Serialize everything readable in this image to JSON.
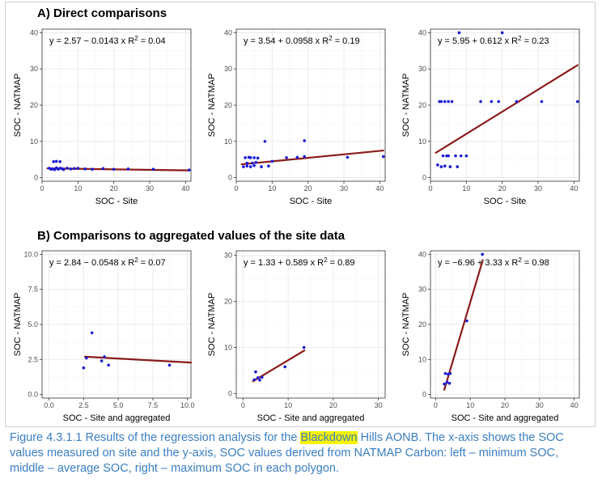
{
  "section_a_title": "A)  Direct comparisons",
  "section_b_title": "B)  Comparisons to aggregated values of the site data",
  "caption": {
    "line1_before": "Figure 4.3.1.1 Results of the regression analysis for the ",
    "highlight": "Blackdown",
    "line1_after": " Hills AONB. The x-axis shows the SOC values measured on site and the y-axis, SOC values derived from NATMAP Carbon: left – minimum SOC, middle – average SOC, right – maximum SOC in each polygon."
  },
  "colors": {
    "point": "#1b1bd6",
    "line": "#8b1a1a",
    "grid": "#ebebeb",
    "frame": "#333333"
  },
  "chart_data": [
    {
      "id": "a1",
      "type": "scatter",
      "equation": "y = 2.57 − 0.0143 x",
      "r2_label": "R",
      "r2_sup": "2",
      "r2_value": " = 0.04",
      "xlabel": "SOC - Site",
      "ylabel": "SOC - NATMAP",
      "xlim": [
        0,
        41.5
      ],
      "ylim": [
        -1,
        41
      ],
      "xticks": [
        0,
        10,
        20,
        30,
        40
      ],
      "yticks": [
        0,
        10,
        20,
        30,
        40
      ],
      "xtick_labels": [
        "0",
        "10",
        "20",
        "30",
        "40"
      ],
      "ytick_labels": [
        "0",
        "10",
        "20",
        "30",
        "40"
      ],
      "points": [
        [
          2,
          2.6
        ],
        [
          2.5,
          2.3
        ],
        [
          3,
          2.4
        ],
        [
          3.2,
          4.4
        ],
        [
          3.5,
          2.2
        ],
        [
          4,
          2.7
        ],
        [
          4,
          4.5
        ],
        [
          4.5,
          2.3
        ],
        [
          5,
          2.6
        ],
        [
          5,
          4.4
        ],
        [
          5.5,
          2.5
        ],
        [
          6,
          2.2
        ],
        [
          7,
          2.6
        ],
        [
          8,
          2.4
        ],
        [
          9,
          2.5
        ],
        [
          10,
          2.6
        ],
        [
          12,
          2.4
        ],
        [
          14,
          2.3
        ],
        [
          17,
          2.5
        ],
        [
          20,
          2.3
        ],
        [
          24,
          2.4
        ],
        [
          31,
          2.3
        ],
        [
          41,
          2.1
        ]
      ],
      "line": [
        [
          1.5,
          2.55
        ],
        [
          41,
          1.98
        ]
      ]
    },
    {
      "id": "a2",
      "type": "scatter",
      "equation": "y = 3.54 + 0.0958 x",
      "r2_label": "R",
      "r2_sup": "2",
      "r2_value": " = 0.19",
      "xlabel": "SOC - Site",
      "ylabel": "SOC - NATMAP",
      "xlim": [
        0,
        41.5
      ],
      "ylim": [
        -1,
        41
      ],
      "xticks": [
        0,
        10,
        20,
        30,
        40
      ],
      "yticks": [
        0,
        10,
        20,
        30,
        40
      ],
      "xtick_labels": [
        "0",
        "10",
        "20",
        "30",
        "40"
      ],
      "ytick_labels": [
        "0",
        "10",
        "20",
        "30",
        "40"
      ],
      "points": [
        [
          2,
          3
        ],
        [
          2.5,
          5.5
        ],
        [
          3,
          4
        ],
        [
          3,
          3.2
        ],
        [
          3.5,
          5.6
        ],
        [
          4,
          3
        ],
        [
          4,
          5.5
        ],
        [
          4.5,
          4
        ],
        [
          5,
          5.5
        ],
        [
          5,
          3.3
        ],
        [
          5.5,
          4.2
        ],
        [
          6,
          5.4
        ],
        [
          7,
          3
        ],
        [
          8,
          10
        ],
        [
          9,
          3.2
        ],
        [
          10,
          4.5
        ],
        [
          14,
          5.5
        ],
        [
          17,
          5.6
        ],
        [
          19,
          10.2
        ],
        [
          19,
          5.8
        ],
        [
          31,
          5.6
        ],
        [
          41,
          5.8
        ]
      ],
      "line": [
        [
          1.5,
          3.68
        ],
        [
          41,
          7.47
        ]
      ]
    },
    {
      "id": "a3",
      "type": "scatter",
      "equation": "y = 5.95 + 0.612 x",
      "r2_label": "R",
      "r2_sup": "2",
      "r2_value": " = 0.23",
      "xlabel": "SOC - Site",
      "ylabel": "SOC - NATMAP",
      "xlim": [
        0,
        41.5
      ],
      "ylim": [
        -1,
        41
      ],
      "xticks": [
        0,
        10,
        20,
        30,
        40
      ],
      "yticks": [
        0,
        10,
        20,
        30,
        40
      ],
      "xtick_labels": [
        "0",
        "10",
        "20",
        "30",
        "40"
      ],
      "ytick_labels": [
        "0",
        "10",
        "20",
        "30",
        "40"
      ],
      "points": [
        [
          2,
          3.5
        ],
        [
          2.5,
          21
        ],
        [
          3,
          3
        ],
        [
          3,
          21
        ],
        [
          3.5,
          6
        ],
        [
          4,
          3.2
        ],
        [
          4,
          21
        ],
        [
          4.5,
          6
        ],
        [
          5,
          21
        ],
        [
          5,
          6
        ],
        [
          5.5,
          3
        ],
        [
          6,
          21
        ],
        [
          7,
          6
        ],
        [
          7.5,
          3
        ],
        [
          8,
          40
        ],
        [
          8.5,
          6
        ],
        [
          10,
          6
        ],
        [
          14,
          21
        ],
        [
          17,
          21
        ],
        [
          19,
          21
        ],
        [
          20,
          40
        ],
        [
          24,
          21
        ],
        [
          31,
          21
        ],
        [
          41,
          21
        ]
      ],
      "line": [
        [
          1.5,
          6.87
        ],
        [
          41,
          31.04
        ]
      ]
    },
    {
      "id": "b1",
      "type": "scatter",
      "equation": "y = 2.84 − 0.0548 x",
      "r2_label": "R",
      "r2_sup": "2",
      "r2_value": " = 0.07",
      "xlabel": "SOC - Site and aggregated",
      "ylabel": "SOC - NATMAP",
      "xlim": [
        -0.5,
        10.25
      ],
      "ylim": [
        -0.25,
        10.25
      ],
      "xticks": [
        0,
        2.5,
        5,
        7.5,
        10
      ],
      "yticks": [
        0,
        2.5,
        5,
        7.5,
        10
      ],
      "xtick_labels": [
        "0.0",
        "2.5",
        "5.0",
        "7.5",
        "10.0"
      ],
      "ytick_labels": [
        "0.0",
        "2.5",
        "5.0",
        "7.5",
        "10.0"
      ],
      "points": [
        [
          2.5,
          1.9
        ],
        [
          2.7,
          2.6
        ],
        [
          3.1,
          4.4
        ],
        [
          3.8,
          2.4
        ],
        [
          4.0,
          2.7
        ],
        [
          4.3,
          2.1
        ],
        [
          8.7,
          2.1
        ]
      ],
      "line": [
        [
          2.6,
          2.7
        ],
        [
          10.25,
          2.28
        ]
      ]
    },
    {
      "id": "b2",
      "type": "scatter",
      "equation": "y = 1.33 + 0.589 x",
      "r2_label": "R",
      "r2_sup": "2",
      "r2_value": " = 0.89",
      "xlabel": "SOC - Site and aggregated",
      "ylabel": "SOC - NATMAP",
      "xlim": [
        -1.5,
        31.5
      ],
      "ylim": [
        -1,
        31
      ],
      "xticks": [
        0,
        10,
        20,
        30
      ],
      "yticks": [
        0,
        10,
        20,
        30
      ],
      "xtick_labels": [
        "0",
        "10",
        "20",
        "30"
      ],
      "ytick_labels": [
        "0",
        "10",
        "20",
        "30"
      ],
      "points": [
        [
          2.5,
          3
        ],
        [
          2.8,
          4.7
        ],
        [
          3.3,
          3.4
        ],
        [
          3.7,
          2.9
        ],
        [
          4.2,
          3.5
        ],
        [
          9.3,
          5.8
        ],
        [
          13.5,
          10
        ]
      ],
      "line": [
        [
          2.2,
          2.63
        ],
        [
          13.6,
          9.34
        ]
      ]
    },
    {
      "id": "b3",
      "type": "scatter",
      "equation": "y = −6.96 + 3.33 x",
      "r2_label": "R",
      "r2_sup": "2",
      "r2_value": " = 0.98",
      "xlabel": "SOC - Site and aggregated",
      "ylabel": "SOC - NATMAP",
      "xlim": [
        -1.5,
        41.5
      ],
      "ylim": [
        -1,
        41
      ],
      "xticks": [
        0,
        10,
        20,
        30,
        40
      ],
      "yticks": [
        0,
        10,
        20,
        30,
        40
      ],
      "xtick_labels": [
        "0",
        "10",
        "20",
        "30",
        "40"
      ],
      "ytick_labels": [
        "0",
        "10",
        "20",
        "30",
        "40"
      ],
      "points": [
        [
          2.5,
          3
        ],
        [
          2.8,
          6
        ],
        [
          3.3,
          3.5
        ],
        [
          3.6,
          5.8
        ],
        [
          4,
          3.2
        ],
        [
          4.2,
          6
        ],
        [
          9,
          21
        ],
        [
          13.5,
          40
        ]
      ],
      "line": [
        [
          2.5,
          1.37
        ],
        [
          13.6,
          38.33
        ]
      ]
    }
  ]
}
